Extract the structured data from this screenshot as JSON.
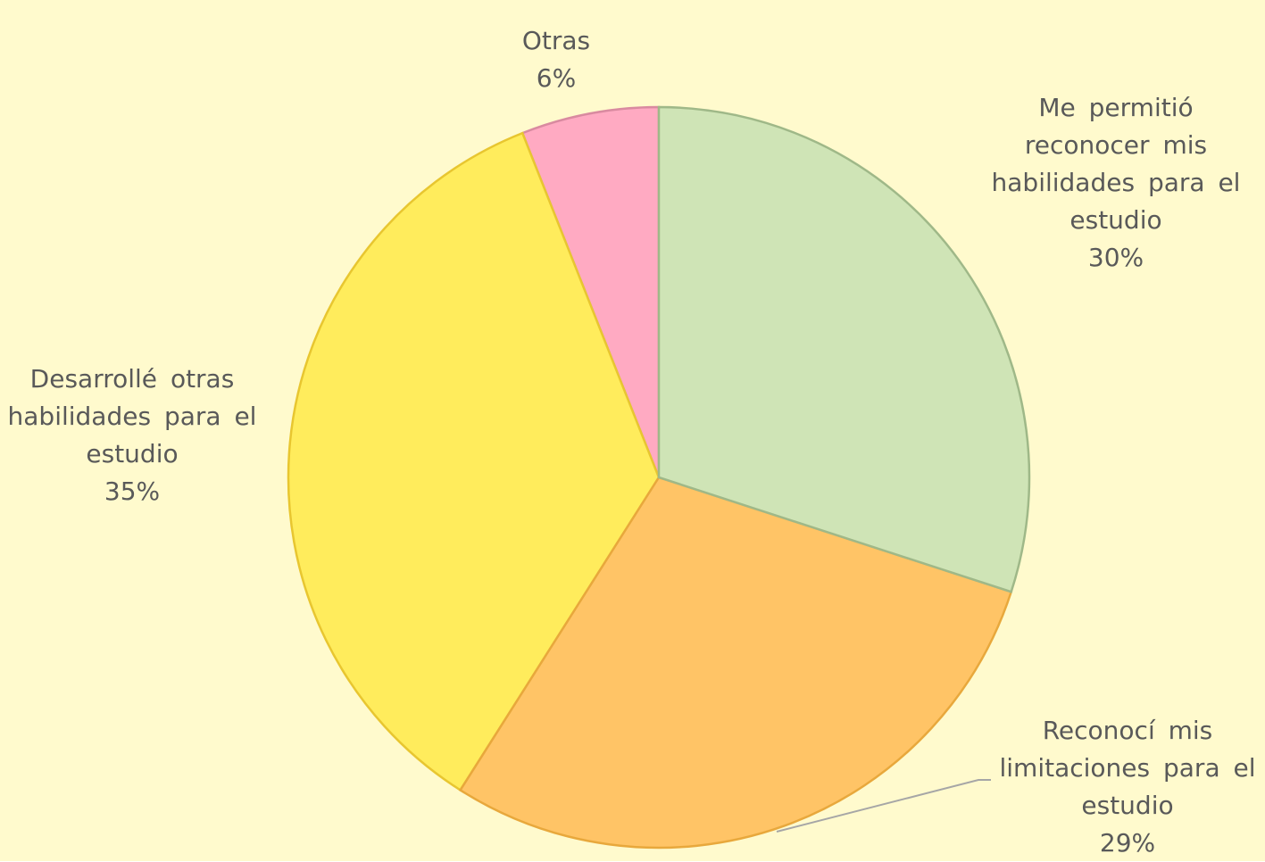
{
  "chart_data": {
    "type": "pie",
    "categories": [
      "Me permitió reconocer mis habilidades para el estudio",
      "Reconocí mis limitaciones para el estudio",
      "Desarrollé otras habilidades para el estudio",
      "Otras"
    ],
    "values": [
      30,
      29,
      35,
      6
    ],
    "value_labels": [
      "30%",
      "29%",
      "35%",
      "6%"
    ],
    "colors": [
      "#cfe4b6",
      "#ffc466",
      "#ffec5c",
      "#ffaac2"
    ]
  }
}
